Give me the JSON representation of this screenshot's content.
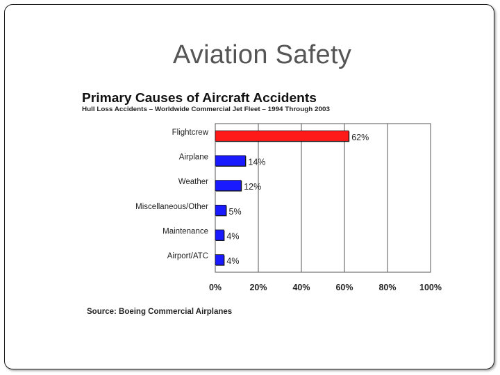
{
  "slide": {
    "title": "Aviation Safety"
  },
  "chart_data": {
    "type": "bar",
    "orientation": "horizontal",
    "title": "Primary Causes of Aircraft Accidents",
    "subtitle": "Hull Loss Accidents – Worldwide Commercial Jet Fleet – 1994 Through 2003",
    "categories": [
      "Flightcrew",
      "Airplane",
      "Weather",
      "Miscellaneous/Other",
      "Maintenance",
      "Airport/ATC"
    ],
    "values": [
      62,
      14,
      12,
      5,
      4,
      4
    ],
    "value_labels": [
      "62%",
      "14%",
      "12%",
      "5%",
      "4%",
      "4%"
    ],
    "bar_colors": [
      "#ff1a1a",
      "#1a1aff",
      "#1a1aff",
      "#1a1aff",
      "#1a1aff",
      "#1a1aff"
    ],
    "xlim": [
      0,
      100
    ],
    "xticks": [
      0,
      20,
      40,
      60,
      80,
      100
    ],
    "xtick_labels": [
      "0%",
      "20%",
      "40%",
      "60%",
      "80%",
      "100%"
    ],
    "grid": true,
    "source": "Source: Boeing Commercial Airplanes"
  }
}
